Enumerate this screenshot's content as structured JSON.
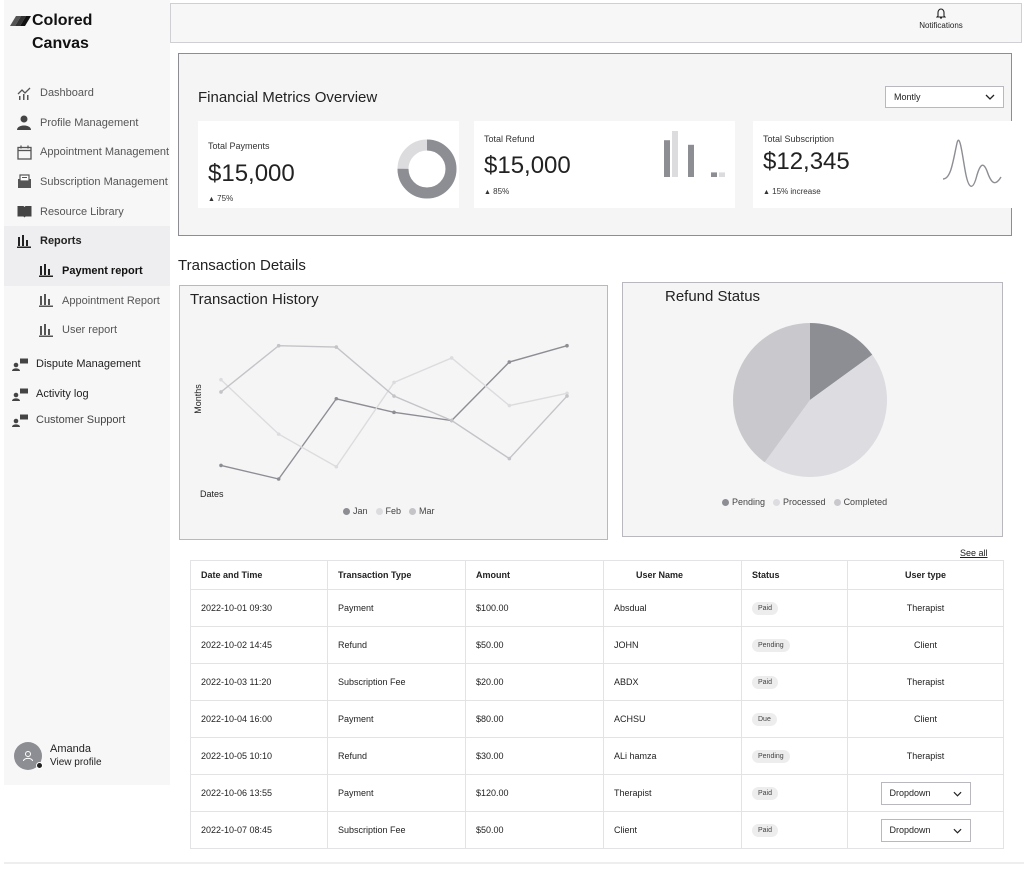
{
  "brand": {
    "name_line1": "Colored",
    "name_line2": "Canvas"
  },
  "header": {
    "notifications_label": "Notifications"
  },
  "sidebar": {
    "items": [
      {
        "label": "Dashboard",
        "icon": "chart-line-icon"
      },
      {
        "label": "Profile Management",
        "icon": "user-icon"
      },
      {
        "label": "Appointment Management",
        "icon": "calendar-icon"
      },
      {
        "label": "Subscription Management",
        "icon": "inbox-icon"
      },
      {
        "label": "Resource Library",
        "icon": "book-icon"
      },
      {
        "label": "Reports",
        "icon": "bar-chart-icon"
      }
    ],
    "sub_items": [
      {
        "label": "Payment report",
        "icon": "bar-chart-icon"
      },
      {
        "label": "Appointment Report",
        "icon": "bar-chart-icon"
      },
      {
        "label": "User report",
        "icon": "bar-chart-icon"
      }
    ],
    "lower_items": [
      {
        "label": "Dispute Management",
        "icon": "people-icon"
      },
      {
        "label": "Activity log",
        "icon": "people-icon"
      },
      {
        "label": "Customer Support",
        "icon": "people-icon"
      }
    ],
    "active_item": "Payment report"
  },
  "profile": {
    "name": "Amanda",
    "link": "View profile"
  },
  "metrics": {
    "title": "Financial Metrics Overview",
    "period_select": "Montly",
    "cards": [
      {
        "label": "Total Payments",
        "value": "$15,000",
        "change": "75%"
      },
      {
        "label": "Total Refund",
        "value": "$15,000",
        "change": "85%"
      },
      {
        "label": "Total Subscription",
        "value": "$12,345",
        "change": "15% increase"
      }
    ],
    "donut_fraction": 0.75,
    "refund_bars": [
      0.8,
      1.0,
      0.7,
      0.1,
      0.1
    ]
  },
  "transactions": {
    "section_title": "Transaction Details",
    "see_all": "See all",
    "columns": [
      "Date and Time",
      "Transaction Type",
      "Amount",
      "User Name",
      "Status",
      "User type"
    ],
    "rows": [
      {
        "date": "2022-10-01 09:30",
        "type": "Payment",
        "amount": "$100.00",
        "user": "Absdual",
        "status": "Paid",
        "user_type": "Therapist"
      },
      {
        "date": "2022-10-02 14:45",
        "type": "Refund",
        "amount": "$50.00",
        "user": "JOHN",
        "status": "Pending",
        "user_type": "Client"
      },
      {
        "date": "2022-10-03 11:20",
        "type": "Subscription Fee",
        "amount": "$20.00",
        "user": "ABDX",
        "status": "Paid",
        "user_type": "Therapist"
      },
      {
        "date": "2022-10-04 16:00",
        "type": "Payment",
        "amount": "$80.00",
        "user": "ACHSU",
        "status": "Due",
        "user_type": "Client"
      },
      {
        "date": "2022-10-05 10:10",
        "type": "Refund",
        "amount": "$30.00",
        "user": "ALi hamza",
        "status": "Pending",
        "user_type": "Therapist"
      },
      {
        "date": "2022-10-06 13:55",
        "type": "Payment",
        "amount": "$120.00",
        "user": "Therapist",
        "status": "Paid",
        "user_type_select": "Dropdown"
      },
      {
        "date": "2022-10-07 08:45",
        "type": "Subscription Fee",
        "amount": "$50.00",
        "user": "Client",
        "status": "Paid",
        "user_type_select": "Dropdown"
      }
    ]
  },
  "chart_data": [
    {
      "type": "line",
      "title": "Transaction History",
      "xlabel": "Dates",
      "ylabel": "Months",
      "x": [
        1,
        2,
        3,
        4,
        5,
        6,
        7
      ],
      "ylim": [
        0,
        100
      ],
      "grid": false,
      "legend_position": "bottom",
      "series": [
        {
          "name": "Jan",
          "color": "#8d8e94",
          "values": [
            10,
            0,
            59,
            49,
            43,
            86,
            98
          ]
        },
        {
          "name": "Feb",
          "color": "#dcdcdf",
          "values": [
            73,
            33,
            9,
            71,
            89,
            54,
            63
          ]
        },
        {
          "name": "Mar",
          "color": "#c4c4c8",
          "values": [
            64,
            98,
            97,
            61,
            43,
            15,
            61
          ]
        }
      ]
    },
    {
      "type": "pie",
      "title": "Refund Status",
      "legend_position": "bottom",
      "slices": [
        {
          "name": "Pending",
          "value": 15,
          "color": "#8d8e94"
        },
        {
          "name": "Processed",
          "value": 45,
          "color": "#dddde1"
        },
        {
          "name": "Completed",
          "value": 40,
          "color": "#c9c9cd"
        }
      ]
    }
  ]
}
